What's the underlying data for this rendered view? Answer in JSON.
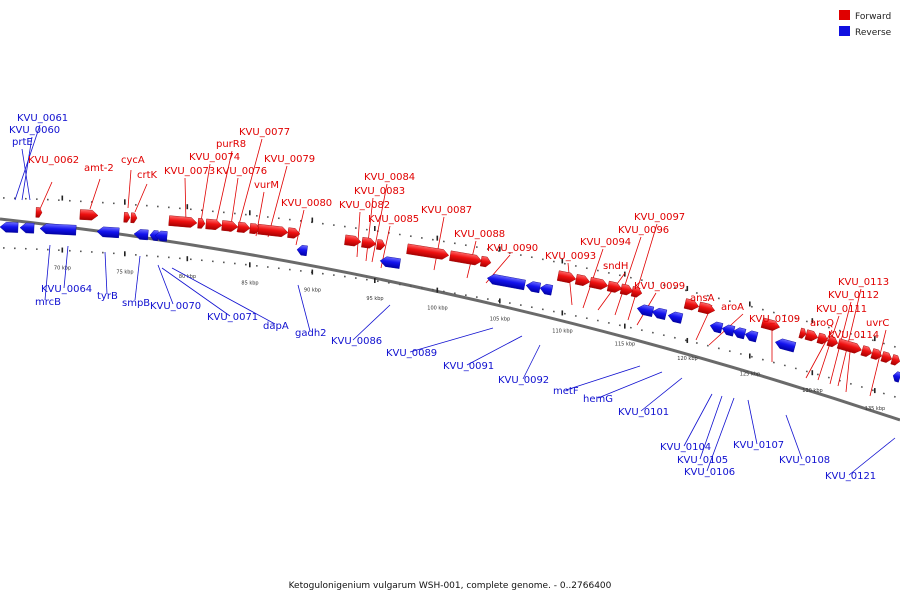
{
  "legend": {
    "forward_label": "Forward",
    "reverse_label": "Reverse",
    "forward_color": "#e00000",
    "reverse_color": "#1010e0"
  },
  "caption": "Ketogulonigenium vulgarum WSH-001, complete genome. - 0..2766400",
  "scale_unit": "kbp",
  "scale": {
    "start_kbp": 65,
    "end_kbp": 137,
    "tick_labels_kbp": [
      70,
      75,
      80,
      85,
      90,
      95,
      100,
      105,
      110,
      115,
      120,
      125,
      130,
      135
    ]
  },
  "forward_labels": [
    "KVU_0062",
    "amt-2",
    "cycA",
    "crtK",
    "KVU_0073",
    "KVU_0074",
    "purR8",
    "KVU_0077",
    "KVU_0076",
    "vurM",
    "KVU_0079",
    "KVU_0080",
    "KVU_0082",
    "KVU_0083",
    "KVU_0084",
    "KVU_0085",
    "KVU_0087",
    "KVU_0088",
    "KVU_0090",
    "KVU_0093",
    "KVU_0094",
    "sndH",
    "KVU_0096",
    "KVU_0097",
    "KVU_0099",
    "ansA",
    "aroA",
    "KVU_0109",
    "aroQ",
    "KVU_0111",
    "KVU_0112",
    "KVU_0113",
    "KVU_0114",
    "uvrC"
  ],
  "reverse_labels": [
    "KVU_0061",
    "KVU_0060",
    "prtE",
    "mrcB",
    "KVU_0064",
    "tyrB",
    "smpB",
    "KVU_0070",
    "KVU_0071",
    "dapA",
    "gadh2",
    "KVU_0086",
    "KVU_0089",
    "KVU_0091",
    "KVU_0092",
    "metF",
    "hemG",
    "KVU_0101",
    "KVU_0104",
    "KVU_0105",
    "KVU_0106",
    "KVU_0107",
    "KVU_0108",
    "KVU_0121"
  ]
}
